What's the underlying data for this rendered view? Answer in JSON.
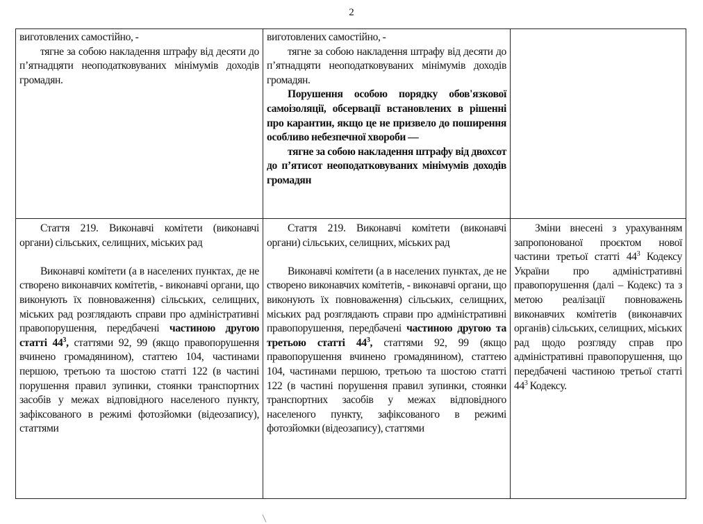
{
  "page_number": "2",
  "rows": [
    {
      "col1": {
        "p1": "виготовлених самостійно, -",
        "p2": "тягне за собою накладення штрафу від десяти до п’ятнадцяти неоподатковуваних мінімумів доходів громадян."
      },
      "col2": {
        "p1": "виготовлених самостійно, -",
        "p2": "тягне за собою накладення штрафу від десяти до п’ятнадцяти неоподатковуваних мінімумів доходів громадян.",
        "p3_bold": "Порушення особою порядку обов'язкової самоізоляції, обсервації встановлених в рішенні про карантин, якщо це не призвело до поширення особливо небезпечної хвороби —",
        "p4_bold": "тягне за собою накладення штрафу від двохсот до п’ятисот неоподатковуваних мінімумів доходів громадян"
      },
      "col3": {}
    },
    {
      "col1": {
        "heading": "Стаття 219. Виконавчі комітети (виконавчі органи) сільських, селищних, міських рад",
        "body_start": "Виконавчі комітети (а в населених пунктах, де не створено виконавчих комітетів, - виконавчі органи, що виконують їх повноваження) сільських, селищних, міських рад розглядають справи про адміністративні правопорушення, передбачені ",
        "body_bold": "частиною другою статті 44",
        "body_bold_sup": "3",
        "body_bold_end": ",",
        "body_end": " статтями 92, 99 (якщо правопорушення вчинено громадянином), статтею 104, частинами першою, третьою та шостою статті 122 (в частині порушення правил зупинки, стоянки транспортних засобів у межах відповідного населеного пункту, зафіксованого в режимі фотозйомки (відеозапису), статтями"
      },
      "col2": {
        "heading": "Стаття 219. Виконавчі комітети (виконавчі органи) сільських, селищних, міських рад",
        "body_start": "Виконавчі комітети (а в населених пунктах, де не створено виконавчих комітетів, - виконавчі органи, що виконують їх повноваження) сільських, селищних, міських рад розглядають справи про адміністративні правопорушення, передбачені ",
        "body_bold": "частиною другою та третьою статті 44",
        "body_bold_sup": "3",
        "body_bold_end": ",",
        "body_end": " статтями 92, 99 (якщо правопорушення вчинено громадянином), статтею 104, частинами першою, третьою та шостою статті 122 (в частині порушення правил зупинки, стоянки транспортних засобів у межах відповідного населеного пункту, зафіксованого в режимі фотозйомки (відеозапису), статтями"
      },
      "col3": {
        "body_start": "Зміни внесені з урахуванням запропонованої проєктом нової частини третьої статті 44",
        "sup1": "3",
        "body_mid": " Кодексу України про адміністративні правопорушення (далі – Кодекс) та з метою реалізації повноважень виконавчих комітетів (виконавчих органів) сільських, селищних, міських рад щодо розгляду справ про адміністративні правопорушення, що передбачені частиною третьої статті 44",
        "sup2": "3",
        "body_end": " Кодексу."
      }
    }
  ]
}
